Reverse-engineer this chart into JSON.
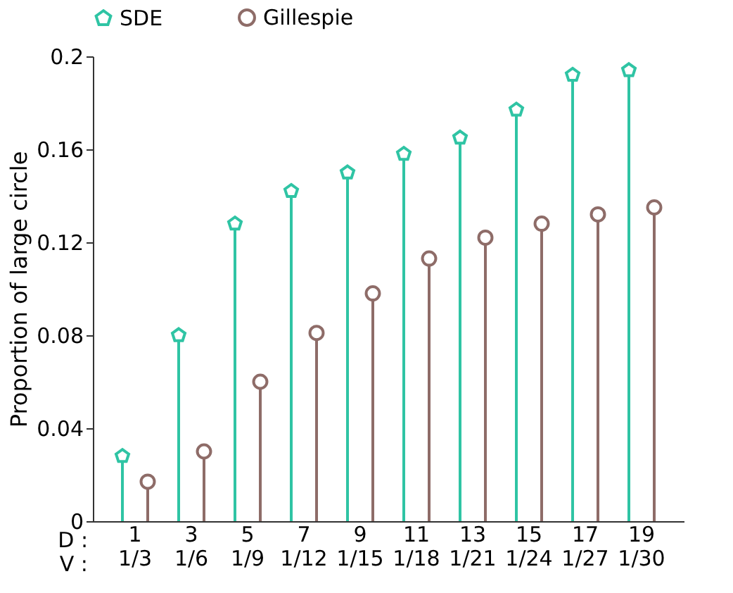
{
  "chart_data": {
    "type": "lollipop",
    "xlabel": "D :\nV :",
    "ylabel": "Proportion of large circle",
    "categories": [
      "1\n1/3",
      "3\n1/6",
      "5\n1/9",
      "7\n1/12",
      "9\n1/15",
      "11\n1/18",
      "13\n1/21",
      "15\n1/24",
      "17\n1/27",
      "19\n1/30"
    ],
    "series": [
      {
        "name": "SDE",
        "color": "#2fc4a4",
        "values": [
          0.028,
          0.08,
          0.128,
          0.142,
          0.15,
          0.158,
          0.165,
          0.177,
          0.192,
          0.194
        ]
      },
      {
        "name": "Gillespie",
        "color": "#8e6c68",
        "marker": "circle",
        "values": [
          0.017,
          0.03,
          0.06,
          0.081,
          0.098,
          0.113,
          0.122,
          0.128,
          0.132,
          0.135
        ]
      }
    ],
    "ylim": [
      0,
      0.2
    ],
    "yticks": [
      0,
      0.04,
      0.08,
      0.12,
      0.16,
      0.2
    ],
    "grid": false,
    "legend": "top"
  }
}
